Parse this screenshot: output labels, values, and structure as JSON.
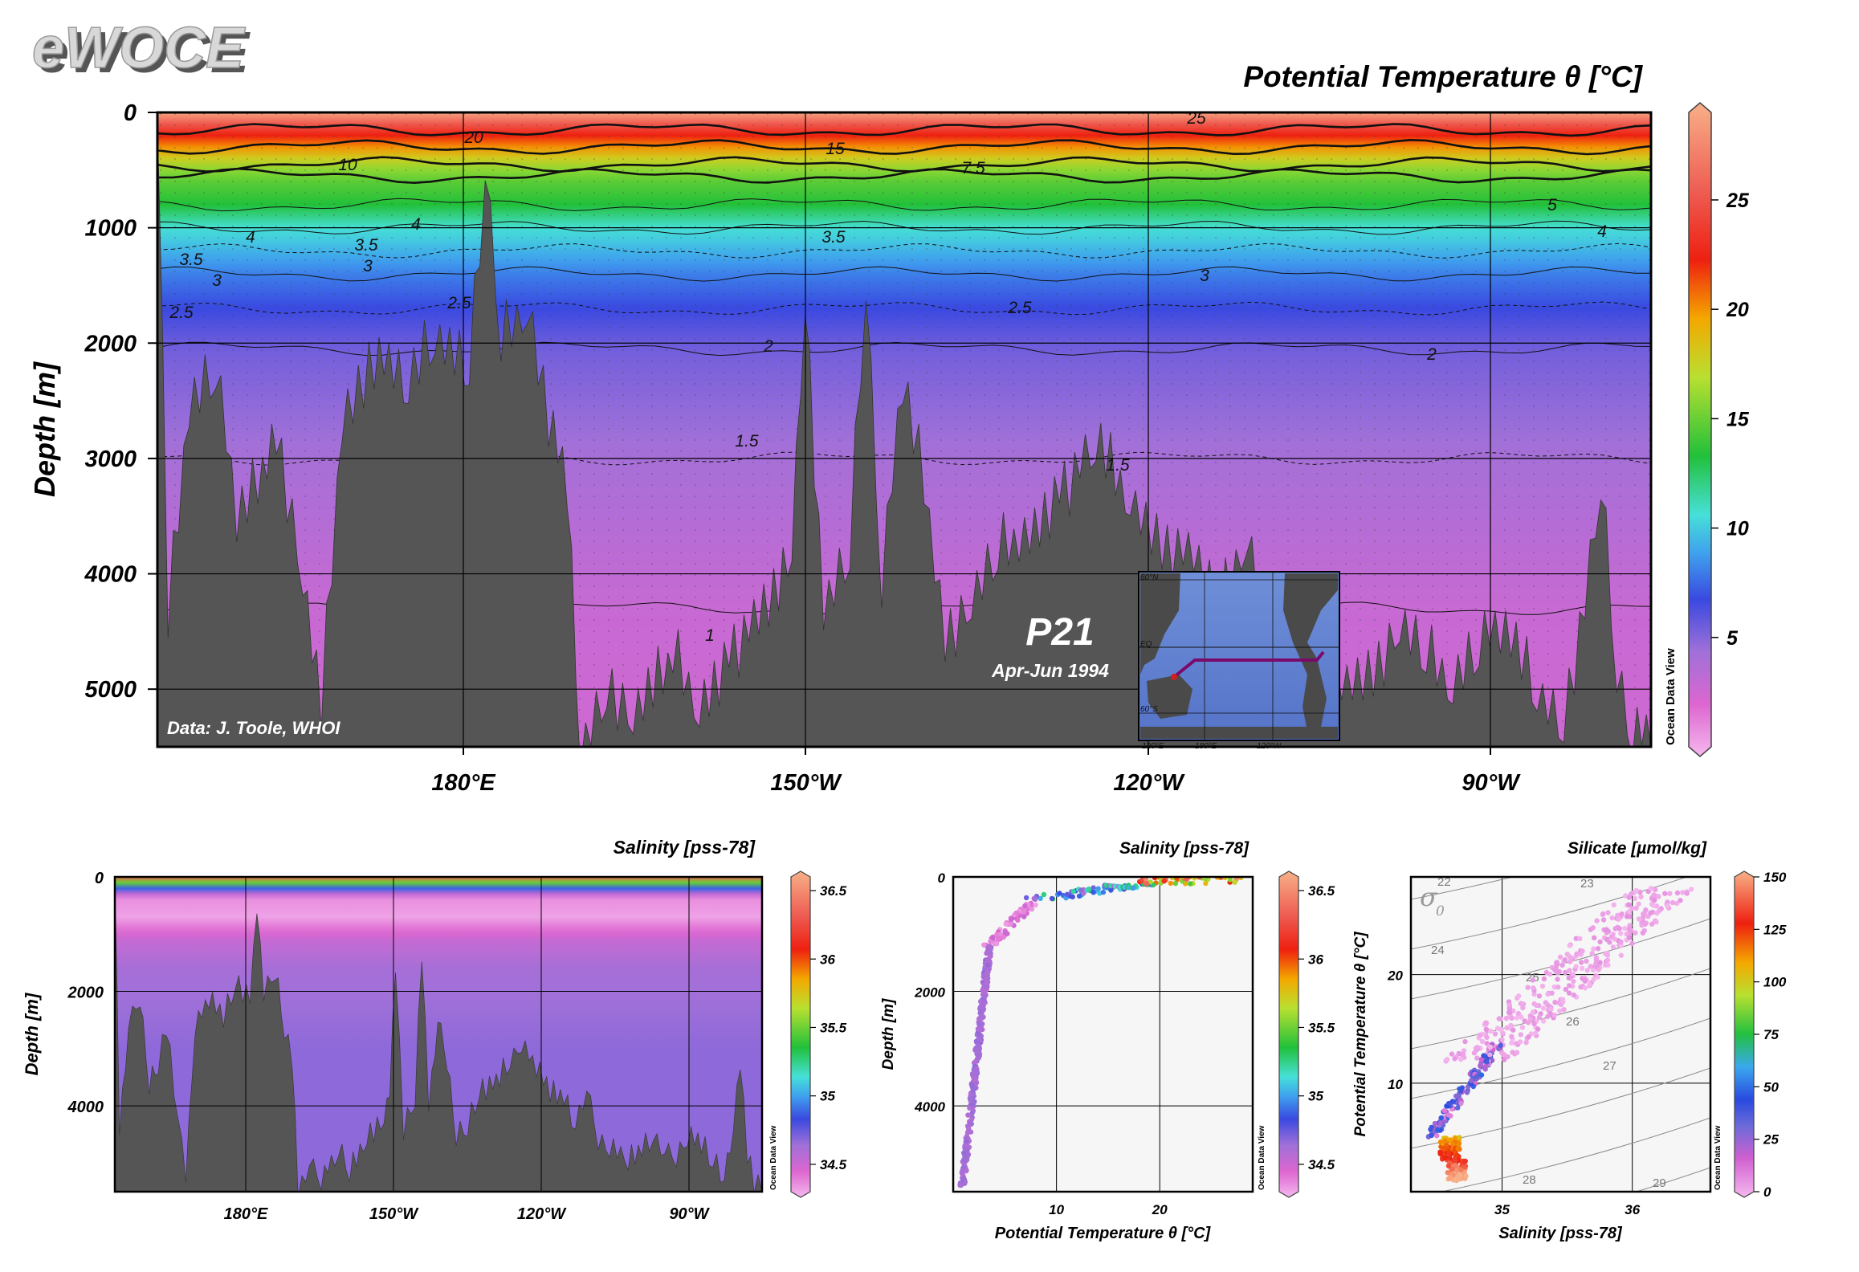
{
  "logo": "eWOCE",
  "main": {
    "title": "Potential Temperature θ [°C]",
    "ylabel": "Depth [m]",
    "section_name": "P21",
    "dates": "Apr-Jun 1994",
    "credit": "Data: J. Toole, WHOI",
    "odv_label": "Ocean Data View",
    "inset_labels": [
      "60°N",
      "EQ",
      "60°S",
      "120°E",
      "180°E",
      "120°W"
    ],
    "colorbar_ticks": [
      "25",
      "20",
      "15",
      "10",
      "5"
    ]
  },
  "bottom": {
    "salinity_section": {
      "title": "Salinity [pss-78]",
      "ylabel": "Depth [m]",
      "odv_label": "Ocean Data View"
    },
    "salinity_profile": {
      "title": "Salinity [pss-78]",
      "ylabel": "Depth [m]",
      "xlabel": "Potential Temperature θ [°C]",
      "odv_label": "Ocean Data View"
    },
    "ts_diagram": {
      "title": "Silicate [µmol/kg]",
      "ylabel": "Potential Temperature θ [°C]",
      "xlabel": "Salinity [pss-78]",
      "sigma_label": "σ",
      "sigma_sub": "0",
      "odv_label": "Ocean Data View"
    }
  },
  "chart_data": [
    {
      "type": "heatmap",
      "title": "Potential Temperature θ [°C]",
      "ylabel": "Depth [m]",
      "xlabel": "",
      "xticks": [
        "180°E",
        "150°W",
        "120°W",
        "90°W"
      ],
      "yticks": [
        0,
        1000,
        2000,
        3000,
        4000,
        5000
      ],
      "ylim": [
        0,
        5500
      ],
      "colorbar": {
        "min": 0,
        "max": 29,
        "ticks": [
          5,
          10,
          15,
          20,
          25
        ]
      },
      "contour_labels": [
        "25",
        "20",
        "15",
        "10",
        "7.5",
        "5",
        "4",
        "3.5",
        "3",
        "2.5",
        "2",
        "1.5",
        "1"
      ],
      "isotherm_depths": {
        "20": 150,
        "15": 300,
        "10": 450,
        "7.5": 550,
        "5": 800,
        "4": 1000,
        "3.5": 1200,
        "3": 1400,
        "2.5": 1700,
        "2": 2050,
        "1.5": 3000,
        "1": 4300
      }
    },
    {
      "type": "heatmap",
      "title": "Salinity [pss-78]",
      "ylabel": "Depth [m]",
      "xticks": [
        "180°E",
        "150°W",
        "120°W",
        "90°W"
      ],
      "yticks": [
        0,
        2000,
        4000
      ],
      "ylim": [
        0,
        5500
      ],
      "colorbar": {
        "min": 34.3,
        "max": 36.6,
        "ticks": [
          "36.5",
          "36",
          "35.5",
          "35",
          "34.5"
        ]
      }
    },
    {
      "type": "scatter",
      "title": "Salinity [pss-78]",
      "xlabel": "Potential Temperature θ [°C]",
      "ylabel": "Depth [m]",
      "xticks": [
        10,
        20
      ],
      "yticks": [
        0,
        2000,
        4000
      ],
      "xlim": [
        0,
        29
      ],
      "ylim": [
        0,
        5500
      ],
      "colorbar": {
        "min": 34.3,
        "max": 36.6,
        "ticks": [
          "36.5",
          "36",
          "35.5",
          "35",
          "34.5"
        ]
      }
    },
    {
      "type": "scatter",
      "title": "Silicate [µmol/kg]",
      "xlabel": "Salinity [pss-78]",
      "ylabel": "Potential Temperature θ [°C]",
      "xticks": [
        35,
        36
      ],
      "yticks": [
        10,
        20
      ],
      "xlim": [
        34.3,
        36.6
      ],
      "ylim": [
        0,
        29
      ],
      "sigma_labels": [
        "22",
        "23",
        "24",
        "25",
        "26",
        "27",
        "28",
        "29"
      ],
      "colorbar": {
        "min": 0,
        "max": 150,
        "ticks": [
          "150",
          "125",
          "100",
          "75",
          "50",
          "25",
          "0"
        ]
      }
    }
  ]
}
